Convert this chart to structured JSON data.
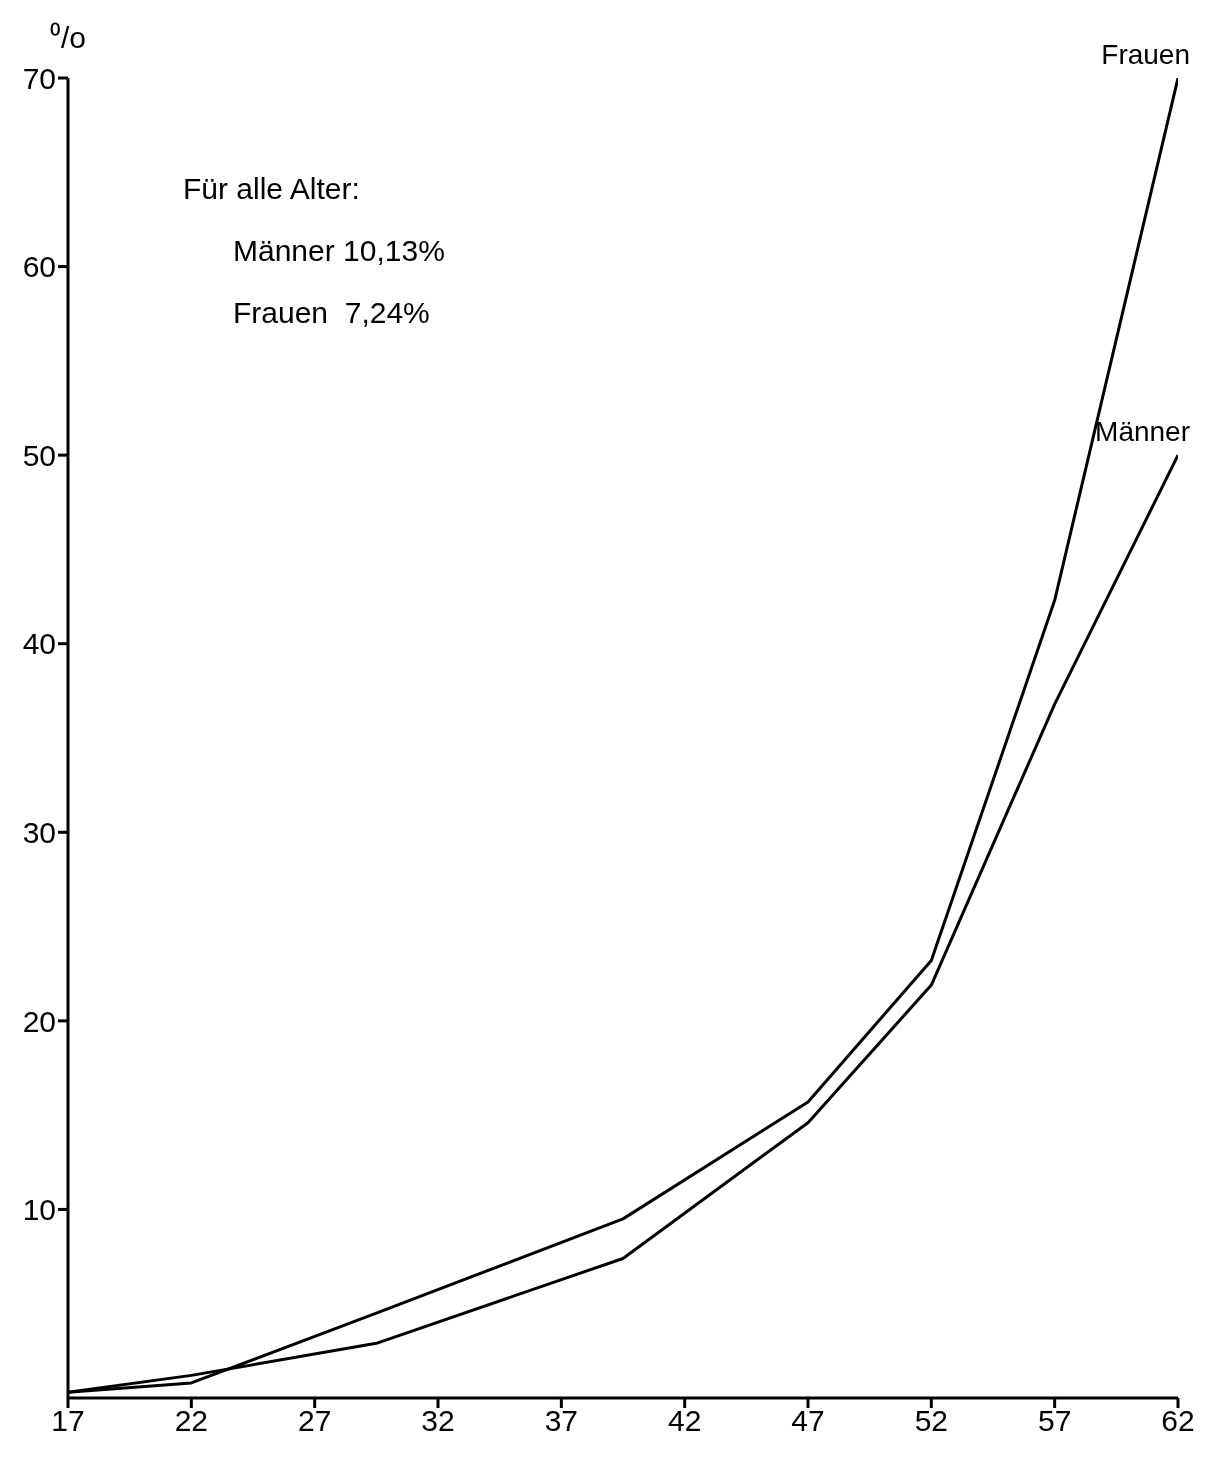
{
  "chart_data": {
    "type": "line",
    "ylabel": "⁰/o",
    "x": [
      17,
      22,
      29.5,
      39.5,
      47,
      52,
      57,
      62
    ],
    "series": [
      {
        "name": "Frauen",
        "color": "#000000",
        "values": [
          0.3,
          0.8,
          4.5,
          9.5,
          15.7,
          23.2,
          42.3,
          70
        ]
      },
      {
        "name": "Männer",
        "color": "#000000",
        "values": [
          0.3,
          1.2,
          2.9,
          7.4,
          14.6,
          21.9,
          36.8,
          50
        ]
      }
    ],
    "xlim": [
      17,
      62
    ],
    "xticks": [
      17,
      22,
      27,
      32,
      37,
      42,
      47,
      52,
      57,
      62
    ],
    "ylim": [
      0,
      70
    ],
    "yticks": [
      10,
      20,
      30,
      40,
      50,
      60,
      70
    ],
    "annotations": [
      "Für alle Alter:",
      "Männer 10,13%",
      "Frauen  7,24%"
    ],
    "grid": false,
    "legend": false,
    "marker": "none",
    "line_style": "solid"
  }
}
